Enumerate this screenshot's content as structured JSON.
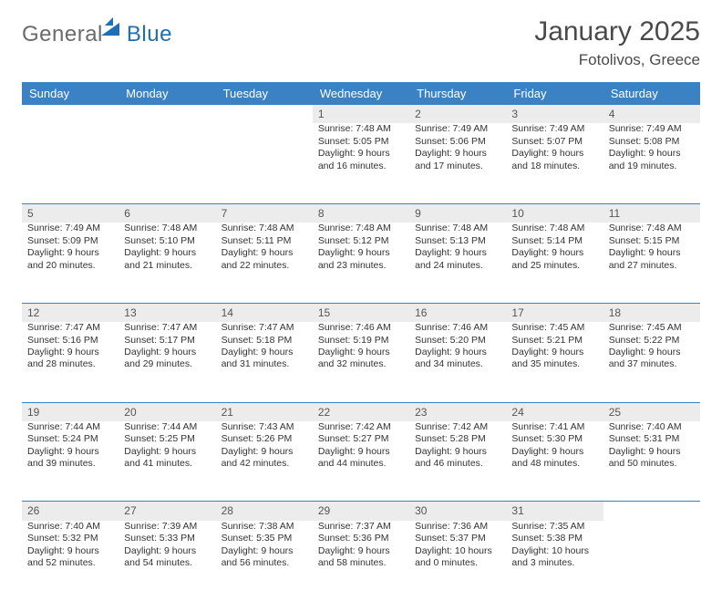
{
  "brand": {
    "part1": "General",
    "part2": "Blue"
  },
  "title": {
    "month": "January 2025",
    "location": "Fotolivos, Greece"
  },
  "colors": {
    "header_bg": "#3a82c4",
    "header_fg": "#ffffff",
    "daynum_bg": "#ececec",
    "rule": "#3a82c4",
    "text": "#333333",
    "title": "#4a4a4a"
  },
  "weekdays": [
    "Sunday",
    "Monday",
    "Tuesday",
    "Wednesday",
    "Thursday",
    "Friday",
    "Saturday"
  ],
  "first_weekday_index": 3,
  "days": [
    {
      "n": 1,
      "sunrise": "7:48 AM",
      "sunset": "5:05 PM",
      "daylight": "9 hours and 16 minutes."
    },
    {
      "n": 2,
      "sunrise": "7:49 AM",
      "sunset": "5:06 PM",
      "daylight": "9 hours and 17 minutes."
    },
    {
      "n": 3,
      "sunrise": "7:49 AM",
      "sunset": "5:07 PM",
      "daylight": "9 hours and 18 minutes."
    },
    {
      "n": 4,
      "sunrise": "7:49 AM",
      "sunset": "5:08 PM",
      "daylight": "9 hours and 19 minutes."
    },
    {
      "n": 5,
      "sunrise": "7:49 AM",
      "sunset": "5:09 PM",
      "daylight": "9 hours and 20 minutes."
    },
    {
      "n": 6,
      "sunrise": "7:48 AM",
      "sunset": "5:10 PM",
      "daylight": "9 hours and 21 minutes."
    },
    {
      "n": 7,
      "sunrise": "7:48 AM",
      "sunset": "5:11 PM",
      "daylight": "9 hours and 22 minutes."
    },
    {
      "n": 8,
      "sunrise": "7:48 AM",
      "sunset": "5:12 PM",
      "daylight": "9 hours and 23 minutes."
    },
    {
      "n": 9,
      "sunrise": "7:48 AM",
      "sunset": "5:13 PM",
      "daylight": "9 hours and 24 minutes."
    },
    {
      "n": 10,
      "sunrise": "7:48 AM",
      "sunset": "5:14 PM",
      "daylight": "9 hours and 25 minutes."
    },
    {
      "n": 11,
      "sunrise": "7:48 AM",
      "sunset": "5:15 PM",
      "daylight": "9 hours and 27 minutes."
    },
    {
      "n": 12,
      "sunrise": "7:47 AM",
      "sunset": "5:16 PM",
      "daylight": "9 hours and 28 minutes."
    },
    {
      "n": 13,
      "sunrise": "7:47 AM",
      "sunset": "5:17 PM",
      "daylight": "9 hours and 29 minutes."
    },
    {
      "n": 14,
      "sunrise": "7:47 AM",
      "sunset": "5:18 PM",
      "daylight": "9 hours and 31 minutes."
    },
    {
      "n": 15,
      "sunrise": "7:46 AM",
      "sunset": "5:19 PM",
      "daylight": "9 hours and 32 minutes."
    },
    {
      "n": 16,
      "sunrise": "7:46 AM",
      "sunset": "5:20 PM",
      "daylight": "9 hours and 34 minutes."
    },
    {
      "n": 17,
      "sunrise": "7:45 AM",
      "sunset": "5:21 PM",
      "daylight": "9 hours and 35 minutes."
    },
    {
      "n": 18,
      "sunrise": "7:45 AM",
      "sunset": "5:22 PM",
      "daylight": "9 hours and 37 minutes."
    },
    {
      "n": 19,
      "sunrise": "7:44 AM",
      "sunset": "5:24 PM",
      "daylight": "9 hours and 39 minutes."
    },
    {
      "n": 20,
      "sunrise": "7:44 AM",
      "sunset": "5:25 PM",
      "daylight": "9 hours and 41 minutes."
    },
    {
      "n": 21,
      "sunrise": "7:43 AM",
      "sunset": "5:26 PM",
      "daylight": "9 hours and 42 minutes."
    },
    {
      "n": 22,
      "sunrise": "7:42 AM",
      "sunset": "5:27 PM",
      "daylight": "9 hours and 44 minutes."
    },
    {
      "n": 23,
      "sunrise": "7:42 AM",
      "sunset": "5:28 PM",
      "daylight": "9 hours and 46 minutes."
    },
    {
      "n": 24,
      "sunrise": "7:41 AM",
      "sunset": "5:30 PM",
      "daylight": "9 hours and 48 minutes."
    },
    {
      "n": 25,
      "sunrise": "7:40 AM",
      "sunset": "5:31 PM",
      "daylight": "9 hours and 50 minutes."
    },
    {
      "n": 26,
      "sunrise": "7:40 AM",
      "sunset": "5:32 PM",
      "daylight": "9 hours and 52 minutes."
    },
    {
      "n": 27,
      "sunrise": "7:39 AM",
      "sunset": "5:33 PM",
      "daylight": "9 hours and 54 minutes."
    },
    {
      "n": 28,
      "sunrise": "7:38 AM",
      "sunset": "5:35 PM",
      "daylight": "9 hours and 56 minutes."
    },
    {
      "n": 29,
      "sunrise": "7:37 AM",
      "sunset": "5:36 PM",
      "daylight": "9 hours and 58 minutes."
    },
    {
      "n": 30,
      "sunrise": "7:36 AM",
      "sunset": "5:37 PM",
      "daylight": "10 hours and 0 minutes."
    },
    {
      "n": 31,
      "sunrise": "7:35 AM",
      "sunset": "5:38 PM",
      "daylight": "10 hours and 3 minutes."
    }
  ],
  "labels": {
    "sunrise": "Sunrise:",
    "sunset": "Sunset:",
    "daylight": "Daylight:"
  }
}
